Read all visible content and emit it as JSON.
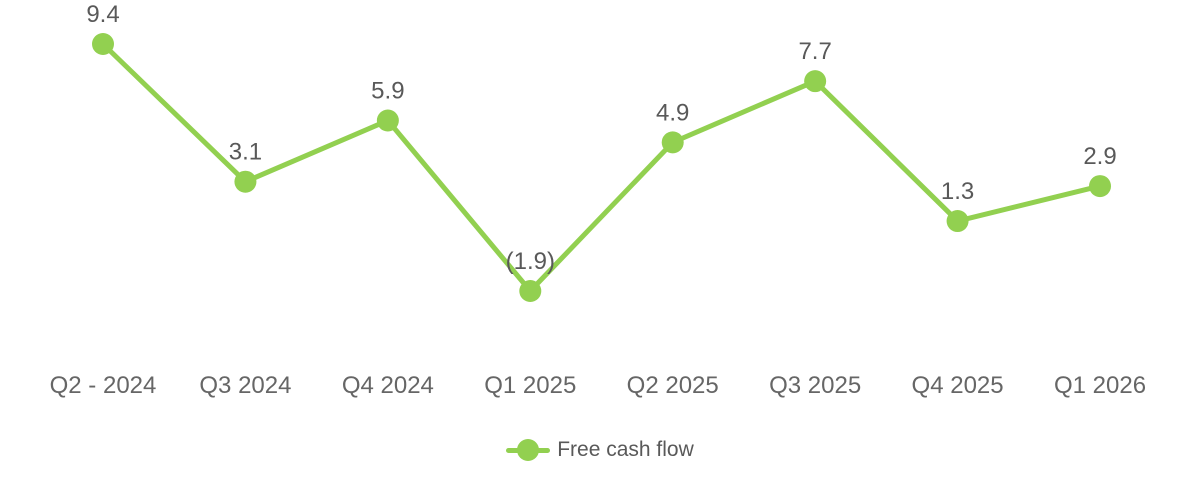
{
  "chart_data": {
    "type": "line",
    "categories": [
      "Q2 - 2024",
      "Q3 2024",
      "Q4 2024",
      "Q1 2025",
      "Q2 2025",
      "Q3 2025",
      "Q4 2025",
      "Q1 2026"
    ],
    "series": [
      {
        "name": "Free cash flow",
        "values": [
          9.4,
          3.1,
          5.9,
          -1.9,
          4.9,
          7.7,
          1.3,
          2.9
        ],
        "value_labels": [
          "9.4",
          "3.1",
          "5.9",
          "(1.9)",
          "4.9",
          "7.7",
          "1.3",
          "2.9"
        ],
        "color": "#92D050",
        "marker": "circle"
      }
    ],
    "negative_format": "parentheses",
    "legend": {
      "position": "bottom",
      "entries": [
        "Free cash flow"
      ]
    },
    "axes": {
      "x_visible": true,
      "y_visible": false,
      "gridlines": false
    },
    "colors": {
      "series": "#92D050",
      "data_label": "#595959",
      "axis_label": "#666666",
      "legend_label": "#595959",
      "background": "#FFFFFF"
    }
  }
}
